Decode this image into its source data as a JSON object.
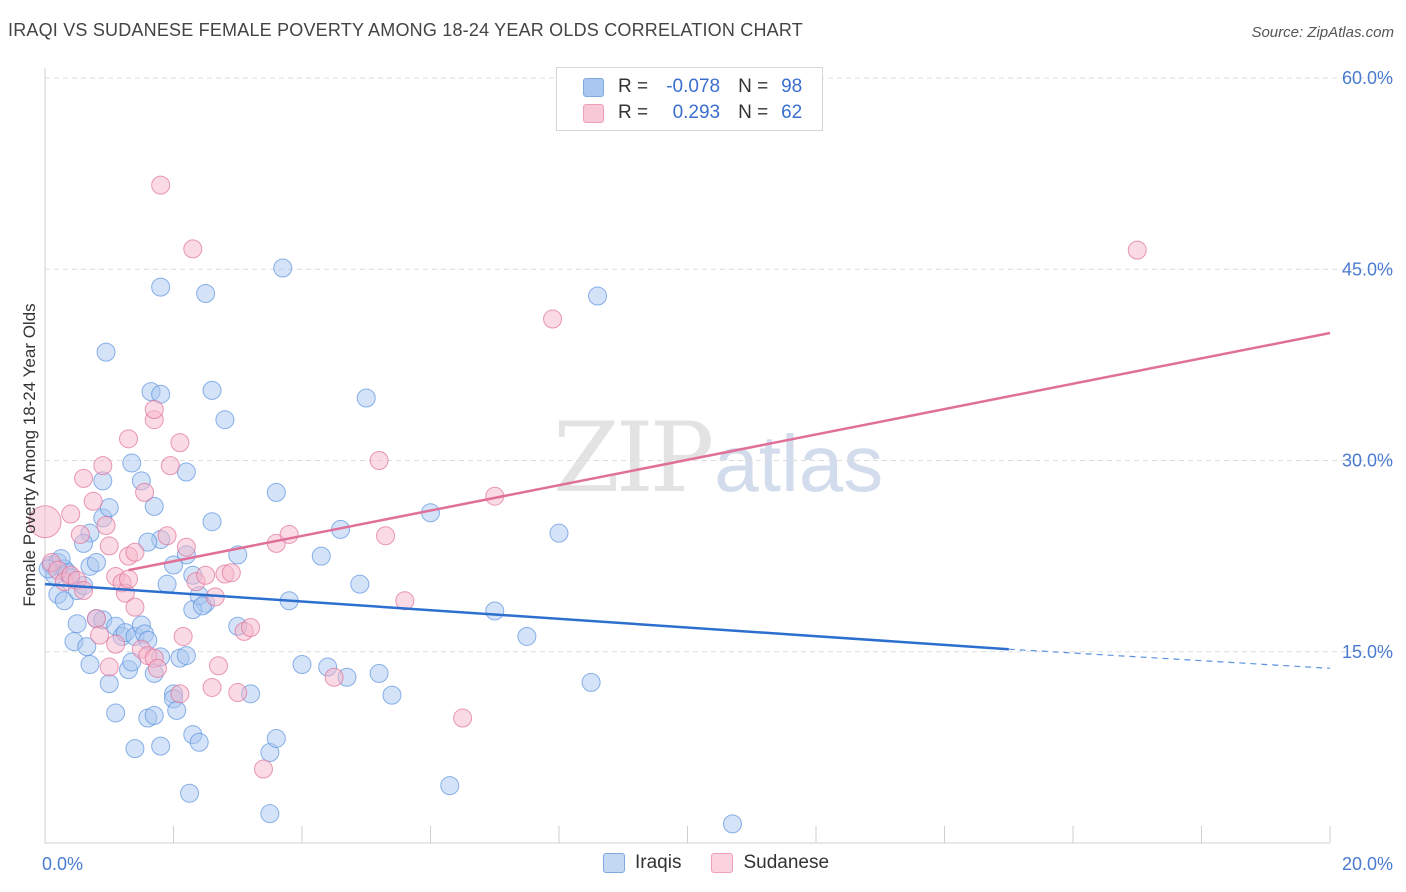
{
  "header": {
    "title": "IRAQI VS SUDANESE FEMALE POVERTY AMONG 18-24 YEAR OLDS CORRELATION CHART",
    "source": "Source: ZipAtlas.com"
  },
  "watermark": {
    "zip": "ZIP",
    "atlas": "atlas"
  },
  "legend": {
    "rows": [
      {
        "r_label": "R =",
        "r_value": "-0.078",
        "n_label": "N =",
        "n_value": "98",
        "color": "#a9c7ef"
      },
      {
        "r_label": "R =",
        "r_value": "0.293",
        "n_label": "N =",
        "n_value": "62",
        "color": "#f5b6c9"
      }
    ]
  },
  "bottom_legend": {
    "items": [
      {
        "label": "Iraqis",
        "color": "#a9c7ef"
      },
      {
        "label": "Sudanese",
        "color": "#f5b6c9"
      }
    ]
  },
  "chart_data": {
    "type": "scatter",
    "title": "IRAQI VS SUDANESE FEMALE POVERTY AMONG 18-24 YEAR OLDS CORRELATION CHART",
    "xlabel": "",
    "ylabel": "Female Poverty Among 18-24 Year Olds",
    "xlim": [
      0,
      20
    ],
    "ylim": [
      0,
      60
    ],
    "x_tick_labels": [
      "0.0%",
      "20.0%"
    ],
    "y_tick_labels": [
      "15.0%",
      "30.0%",
      "45.0%",
      "60.0%"
    ],
    "y_ticks": [
      15,
      30,
      45,
      60
    ],
    "grid": true,
    "legend_position": "top-center",
    "series": [
      {
        "name": "Iraqis",
        "color": "#5b93e0",
        "fill": "#a9c7ef",
        "trend": {
          "x": [
            0,
            15.0
          ],
          "y": [
            20.3,
            15.2
          ],
          "dashed_to_x": 20.0,
          "dashed_to_y": 13.7
        },
        "points": [
          [
            0.1,
            21.8
          ],
          [
            0.2,
            22.0
          ],
          [
            0.15,
            21.0
          ],
          [
            0.3,
            21.5
          ],
          [
            0.25,
            22.3
          ],
          [
            0.35,
            21.2
          ],
          [
            0.4,
            20.8
          ],
          [
            0.2,
            19.5
          ],
          [
            0.3,
            19.0
          ],
          [
            0.5,
            19.8
          ],
          [
            0.6,
            20.2
          ],
          [
            0.7,
            21.7
          ],
          [
            0.8,
            22.0
          ],
          [
            0.9,
            25.5
          ],
          [
            1.0,
            26.3
          ],
          [
            0.9,
            28.4
          ],
          [
            0.7,
            24.3
          ],
          [
            0.6,
            23.5
          ],
          [
            0.45,
            15.8
          ],
          [
            0.5,
            17.2
          ],
          [
            0.65,
            15.4
          ],
          [
            0.7,
            14.0
          ],
          [
            0.8,
            17.6
          ],
          [
            0.9,
            17.5
          ],
          [
            1.1,
            17.0
          ],
          [
            1.2,
            16.2
          ],
          [
            1.25,
            16.5
          ],
          [
            1.3,
            13.6
          ],
          [
            1.35,
            14.2
          ],
          [
            1.4,
            16.2
          ],
          [
            1.5,
            17.1
          ],
          [
            1.55,
            16.4
          ],
          [
            1.6,
            15.9
          ],
          [
            1.7,
            13.3
          ],
          [
            1.8,
            14.6
          ],
          [
            1.0,
            12.5
          ],
          [
            1.1,
            10.2
          ],
          [
            1.4,
            7.4
          ],
          [
            1.6,
            9.8
          ],
          [
            1.7,
            10.0
          ],
          [
            1.8,
            7.6
          ],
          [
            2.0,
            11.7
          ],
          [
            2.0,
            11.3
          ],
          [
            2.05,
            10.4
          ],
          [
            2.1,
            14.5
          ],
          [
            2.2,
            14.7
          ],
          [
            2.3,
            8.5
          ],
          [
            2.4,
            7.9
          ],
          [
            2.5,
            18.8
          ],
          [
            2.3,
            18.3
          ],
          [
            2.4,
            19.4
          ],
          [
            2.45,
            18.6
          ],
          [
            2.2,
            22.6
          ],
          [
            2.3,
            21.0
          ],
          [
            2.0,
            21.8
          ],
          [
            1.9,
            20.3
          ],
          [
            1.8,
            23.8
          ],
          [
            1.6,
            23.6
          ],
          [
            1.7,
            26.4
          ],
          [
            1.5,
            28.4
          ],
          [
            1.35,
            29.8
          ],
          [
            1.65,
            35.4
          ],
          [
            1.8,
            35.2
          ],
          [
            2.2,
            29.1
          ],
          [
            2.6,
            25.2
          ],
          [
            2.6,
            35.5
          ],
          [
            2.8,
            33.2
          ],
          [
            3.0,
            22.6
          ],
          [
            3.0,
            17.0
          ],
          [
            3.2,
            11.7
          ],
          [
            3.5,
            7.1
          ],
          [
            3.6,
            8.2
          ],
          [
            3.8,
            19.0
          ],
          [
            3.6,
            27.5
          ],
          [
            3.7,
            45.1
          ],
          [
            2.5,
            43.1
          ],
          [
            1.8,
            43.6
          ],
          [
            0.95,
            38.5
          ],
          [
            2.25,
            3.9
          ],
          [
            3.5,
            2.3
          ],
          [
            4.0,
            14.0
          ],
          [
            4.3,
            22.5
          ],
          [
            4.4,
            13.8
          ],
          [
            4.6,
            24.6
          ],
          [
            4.7,
            13.0
          ],
          [
            4.9,
            20.3
          ],
          [
            5.0,
            34.9
          ],
          [
            5.2,
            13.3
          ],
          [
            5.4,
            11.6
          ],
          [
            6.0,
            25.9
          ],
          [
            6.3,
            4.5
          ],
          [
            7.0,
            18.2
          ],
          [
            7.5,
            16.2
          ],
          [
            8.0,
            24.3
          ],
          [
            8.5,
            12.6
          ],
          [
            8.6,
            42.9
          ],
          [
            10.7,
            1.5
          ],
          [
            0.05,
            21.5
          ]
        ]
      },
      {
        "name": "Sudanese",
        "color": "#e0709a",
        "fill": "#f5b6c9",
        "trend": {
          "x": [
            1.3,
            20.0
          ],
          "y": [
            21.4,
            40.0
          ]
        },
        "points": [
          [
            0.0,
            25.2
          ],
          [
            0.1,
            22.0
          ],
          [
            0.2,
            21.4
          ],
          [
            0.3,
            20.5
          ],
          [
            0.4,
            21.0
          ],
          [
            0.5,
            20.6
          ],
          [
            0.6,
            19.8
          ],
          [
            0.4,
            25.8
          ],
          [
            0.55,
            24.2
          ],
          [
            0.6,
            28.6
          ],
          [
            0.75,
            26.8
          ],
          [
            0.9,
            29.6
          ],
          [
            1.0,
            23.3
          ],
          [
            0.95,
            24.9
          ],
          [
            0.8,
            17.6
          ],
          [
            0.85,
            16.3
          ],
          [
            1.0,
            13.8
          ],
          [
            1.1,
            15.6
          ],
          [
            1.1,
            20.9
          ],
          [
            1.2,
            20.4
          ],
          [
            1.25,
            19.6
          ],
          [
            1.3,
            20.7
          ],
          [
            1.4,
            18.5
          ],
          [
            1.3,
            22.5
          ],
          [
            1.4,
            22.8
          ],
          [
            1.5,
            15.2
          ],
          [
            1.6,
            14.7
          ],
          [
            1.7,
            14.5
          ],
          [
            1.75,
            13.7
          ],
          [
            1.3,
            31.7
          ],
          [
            1.55,
            27.5
          ],
          [
            1.7,
            33.2
          ],
          [
            1.7,
            34.0
          ],
          [
            1.9,
            24.1
          ],
          [
            1.95,
            29.6
          ],
          [
            2.1,
            31.4
          ],
          [
            2.15,
            16.2
          ],
          [
            2.2,
            23.2
          ],
          [
            2.35,
            20.5
          ],
          [
            2.5,
            21.0
          ],
          [
            2.6,
            12.2
          ],
          [
            2.65,
            19.3
          ],
          [
            2.7,
            13.9
          ],
          [
            2.8,
            21.1
          ],
          [
            2.9,
            21.2
          ],
          [
            3.0,
            11.8
          ],
          [
            3.1,
            16.6
          ],
          [
            3.2,
            16.9
          ],
          [
            3.4,
            5.8
          ],
          [
            3.6,
            23.5
          ],
          [
            3.8,
            24.2
          ],
          [
            4.5,
            13.0
          ],
          [
            5.2,
            30.0
          ],
          [
            5.3,
            24.1
          ],
          [
            5.6,
            19.0
          ],
          [
            6.5,
            9.8
          ],
          [
            7.0,
            27.2
          ],
          [
            7.9,
            41.1
          ],
          [
            2.3,
            46.6
          ],
          [
            1.8,
            51.6
          ],
          [
            17.0,
            46.5
          ],
          [
            2.1,
            11.7
          ]
        ]
      }
    ]
  }
}
